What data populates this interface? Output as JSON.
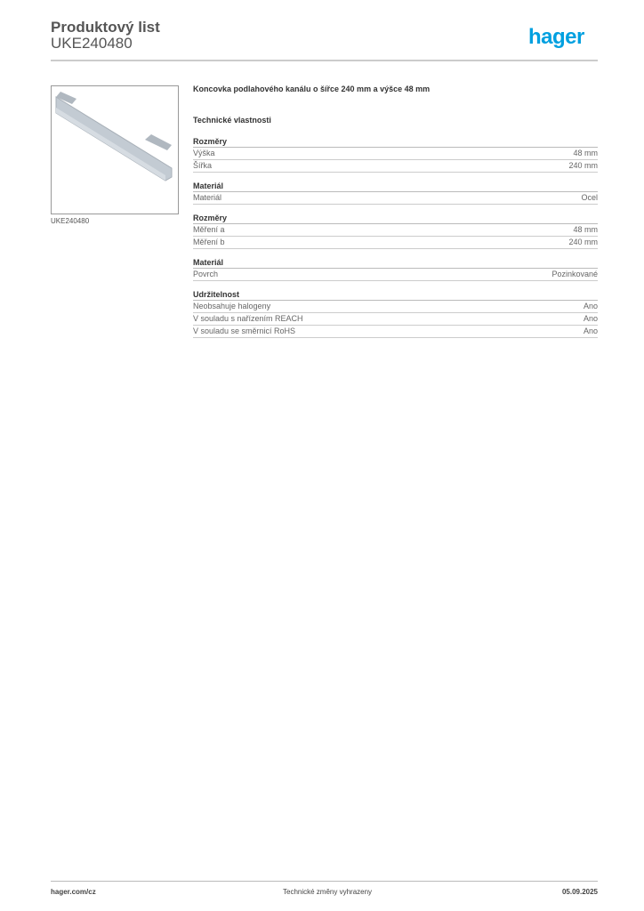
{
  "header": {
    "title": "Produktový list",
    "product_code": "UKE240480",
    "logo": "hager",
    "logo_color": "#00a0e0"
  },
  "product": {
    "image_label": "UKE240480",
    "description": "Koncovka podlahového kanálu o šířce 240 mm a výšce 48 mm",
    "tech_heading": "Technické vlastnosti"
  },
  "sections": [
    {
      "title": "Rozměry",
      "rows": [
        {
          "label": "Výška",
          "value": "48 mm"
        },
        {
          "label": "Šířka",
          "value": "240 mm"
        }
      ]
    },
    {
      "title": "Materiál",
      "rows": [
        {
          "label": "Materiál",
          "value": "Ocel"
        }
      ]
    },
    {
      "title": "Rozměry",
      "rows": [
        {
          "label": "Měření a",
          "value": "48 mm"
        },
        {
          "label": "Měření b",
          "value": "240 mm"
        }
      ]
    },
    {
      "title": "Materiál",
      "rows": [
        {
          "label": "Povrch",
          "value": "Pozinkované"
        }
      ]
    },
    {
      "title": "Udržitelnost",
      "rows": [
        {
          "label": "Neobsahuje halogeny",
          "value": "Ano"
        },
        {
          "label": "V souladu s nařízením REACH",
          "value": "Ano"
        },
        {
          "label": "V souladu se směrnicí RoHS",
          "value": "Ano"
        }
      ]
    }
  ],
  "footer": {
    "website": "hager.com/cz",
    "notice": "Technické změny vyhrazeny",
    "date": "05.09.2025"
  }
}
